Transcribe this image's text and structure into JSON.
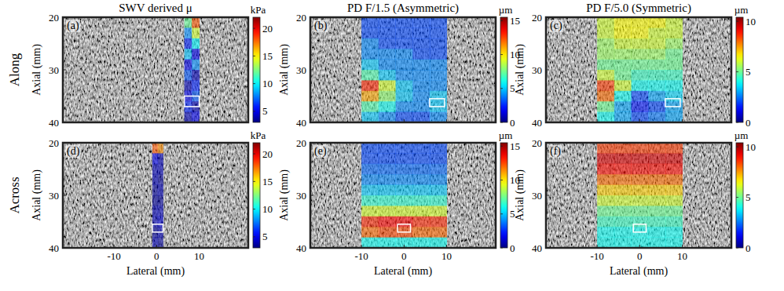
{
  "row_labels": [
    "Along",
    "Across"
  ],
  "chart_data": [
    {
      "type": "heatmap",
      "label": "(a)",
      "title": "SWV derived μ",
      "ylabel": "Axial (mm)",
      "xlim": [
        -22,
        21.5
      ],
      "ylim": [
        40,
        20
      ],
      "xticks": [
        -10,
        0,
        10
      ],
      "yticks": [
        20,
        30,
        40
      ],
      "tick_labels": "y",
      "x_edges": [
        6.5,
        8.25,
        10
      ],
      "y_edges": [
        20,
        22,
        24,
        26,
        28,
        30,
        32,
        34,
        36,
        38,
        40
      ],
      "cells": [
        [
          12,
          18
        ],
        [
          8,
          14
        ],
        [
          6,
          10
        ],
        [
          9,
          5
        ],
        [
          5,
          8
        ],
        [
          7,
          4
        ],
        [
          4,
          6
        ],
        [
          5,
          7
        ],
        [
          6,
          4
        ],
        [
          4,
          5
        ]
      ],
      "roi": [
        6.5,
        10,
        35,
        37
      ],
      "colorbar": {
        "label": "kPa",
        "range": [
          3,
          22
        ],
        "ticks": [
          5,
          10,
          15,
          20
        ]
      }
    },
    {
      "type": "heatmap",
      "label": "(b)",
      "title": "PD F/1.5 (Asymmetric)",
      "ylabel": "Axial (mm)",
      "xlim": [
        -22,
        21.5
      ],
      "ylim": [
        40,
        20
      ],
      "xticks": [
        -10,
        0,
        10
      ],
      "yticks": [
        20,
        30,
        40
      ],
      "tick_labels": "y",
      "x_edges": [
        -10,
        -6,
        -2,
        2,
        6,
        10
      ],
      "y_edges": [
        20,
        22,
        24,
        26,
        28,
        30,
        32,
        34,
        36,
        38,
        40
      ],
      "cells": [
        [
          3,
          3,
          3,
          3,
          3
        ],
        [
          3,
          3,
          3,
          3,
          3
        ],
        [
          4,
          3,
          3,
          3,
          3
        ],
        [
          4,
          4,
          4,
          3,
          3
        ],
        [
          5,
          4,
          4,
          4,
          4
        ],
        [
          7,
          5,
          4,
          4,
          4
        ],
        [
          13,
          9,
          5,
          4,
          4
        ],
        [
          11,
          8,
          5,
          4,
          5
        ],
        [
          7,
          6,
          4,
          4,
          5
        ],
        [
          5,
          4,
          3,
          3,
          4
        ]
      ],
      "roi": [
        6,
        9.5,
        35.5,
        37
      ],
      "colorbar": {
        "label": "µm",
        "range": [
          0,
          15.5
        ],
        "ticks": [
          0,
          5,
          10,
          15
        ]
      }
    },
    {
      "type": "heatmap",
      "label": "(c)",
      "title": "PD F/5.0 (Symmetric)",
      "ylabel": "Axial (mm)",
      "xlim": [
        -22,
        21.5
      ],
      "ylim": [
        40,
        20
      ],
      "xticks": [
        -10,
        0,
        10
      ],
      "yticks": [
        20,
        30,
        40
      ],
      "tick_labels": "y",
      "x_edges": [
        -10,
        -6,
        -2,
        2,
        6,
        10
      ],
      "y_edges": [
        20,
        22,
        24,
        26,
        28,
        30,
        32,
        34,
        36,
        38,
        40
      ],
      "cells": [
        [
          6,
          6.5,
          6.5,
          6.5,
          6
        ],
        [
          6,
          6.5,
          6.5,
          6,
          6
        ],
        [
          5.5,
          6,
          6,
          6,
          5.5
        ],
        [
          5.5,
          5.5,
          5.5,
          5.5,
          5
        ],
        [
          5,
          5,
          5,
          5,
          5
        ],
        [
          6,
          5,
          4.5,
          4.5,
          4.5
        ],
        [
          8.5,
          6,
          4,
          4,
          4
        ],
        [
          8,
          4,
          2,
          3,
          3.5
        ],
        [
          5,
          3,
          1.5,
          2,
          3
        ],
        [
          4,
          3,
          2,
          2.5,
          3
        ]
      ],
      "roi": [
        6,
        9.5,
        35.5,
        37
      ],
      "colorbar": {
        "label": "µm",
        "range": [
          0,
          10.4
        ],
        "ticks": [
          0,
          5,
          10
        ]
      }
    },
    {
      "type": "heatmap",
      "label": "(d)",
      "xlabel": "Lateral (mm)",
      "ylabel": "Axial (mm)",
      "xlim": [
        -22,
        21.5
      ],
      "ylim": [
        40,
        20
      ],
      "xticks": [
        -10,
        0,
        10
      ],
      "yticks": [
        20,
        30,
        40
      ],
      "x_edges": [
        -1,
        0.25,
        1.5
      ],
      "y_edges": [
        20,
        22,
        24,
        26,
        28,
        30,
        32,
        34,
        36,
        38,
        40
      ],
      "cells": [
        [
          18,
          17
        ],
        [
          5,
          4
        ],
        [
          4,
          4
        ],
        [
          4,
          3.5
        ],
        [
          3.5,
          4
        ],
        [
          3.5,
          3.5
        ],
        [
          4,
          4
        ],
        [
          4,
          4.5
        ],
        [
          3.5,
          4
        ],
        [
          4,
          3.5
        ]
      ],
      "roi": [
        -1,
        1.5,
        35.5,
        37
      ],
      "colorbar": {
        "label": "kPa",
        "range": [
          3,
          22
        ],
        "ticks": [
          5,
          10,
          15,
          20
        ]
      }
    },
    {
      "type": "heatmap",
      "label": "(e)",
      "xlabel": "Lateral (mm)",
      "ylabel": "Axial (mm)",
      "xlim": [
        -22,
        21.5
      ],
      "ylim": [
        40,
        20
      ],
      "xticks": [
        -10,
        0,
        10
      ],
      "yticks": [
        20,
        30,
        40
      ],
      "x_edges": [
        -10,
        -6,
        -2,
        2,
        6,
        10
      ],
      "y_edges": [
        20,
        22,
        24,
        26,
        28,
        30,
        32,
        34,
        36,
        38,
        40
      ],
      "cells": [
        [
          3,
          3,
          3,
          3,
          3
        ],
        [
          3,
          3,
          3,
          3,
          3
        ],
        [
          3.5,
          3.5,
          3.5,
          3.5,
          3.5
        ],
        [
          4,
          4,
          4,
          4,
          4
        ],
        [
          5,
          5,
          5,
          5,
          5
        ],
        [
          6.5,
          6.5,
          6.5,
          6.5,
          6.5
        ],
        [
          9,
          9,
          9,
          9,
          9
        ],
        [
          13,
          13.5,
          13.5,
          13,
          13
        ],
        [
          12,
          12.5,
          12.5,
          12,
          12
        ],
        [
          6,
          6,
          6,
          6,
          6
        ]
      ],
      "roi": [
        -1.5,
        1.5,
        35.5,
        37
      ],
      "colorbar": {
        "label": "µm",
        "range": [
          0,
          15.5
        ],
        "ticks": [
          0,
          5,
          10,
          15
        ]
      }
    },
    {
      "type": "heatmap",
      "label": "(f)",
      "xlabel": "Lateral (mm)",
      "ylabel": "Axial (mm)",
      "xlim": [
        -22,
        21.5
      ],
      "ylim": [
        40,
        20
      ],
      "xticks": [
        -10,
        0,
        10
      ],
      "yticks": [
        20,
        30,
        40
      ],
      "x_edges": [
        -10,
        -6,
        -2,
        2,
        6,
        10
      ],
      "y_edges": [
        20,
        22,
        24,
        26,
        28,
        30,
        32,
        34,
        36,
        38,
        40
      ],
      "cells": [
        [
          8.5,
          8.5,
          8.5,
          8.5,
          8.5
        ],
        [
          9.5,
          9.5,
          9.5,
          9.5,
          9.5
        ],
        [
          9,
          9,
          9,
          9,
          9
        ],
        [
          8,
          8,
          8,
          8,
          8
        ],
        [
          7,
          7,
          7,
          7,
          7
        ],
        [
          6,
          6,
          6,
          6,
          6
        ],
        [
          5,
          5,
          5,
          5,
          5
        ],
        [
          4.5,
          4.5,
          4.5,
          4.5,
          4.5
        ],
        [
          4,
          4,
          4,
          4,
          4
        ],
        [
          4,
          4,
          4,
          4,
          4
        ]
      ],
      "roi": [
        -1.5,
        1.5,
        35.5,
        37
      ],
      "colorbar": {
        "label": "µm",
        "range": [
          0,
          10.4
        ],
        "ticks": [
          0,
          5,
          10
        ]
      }
    }
  ]
}
